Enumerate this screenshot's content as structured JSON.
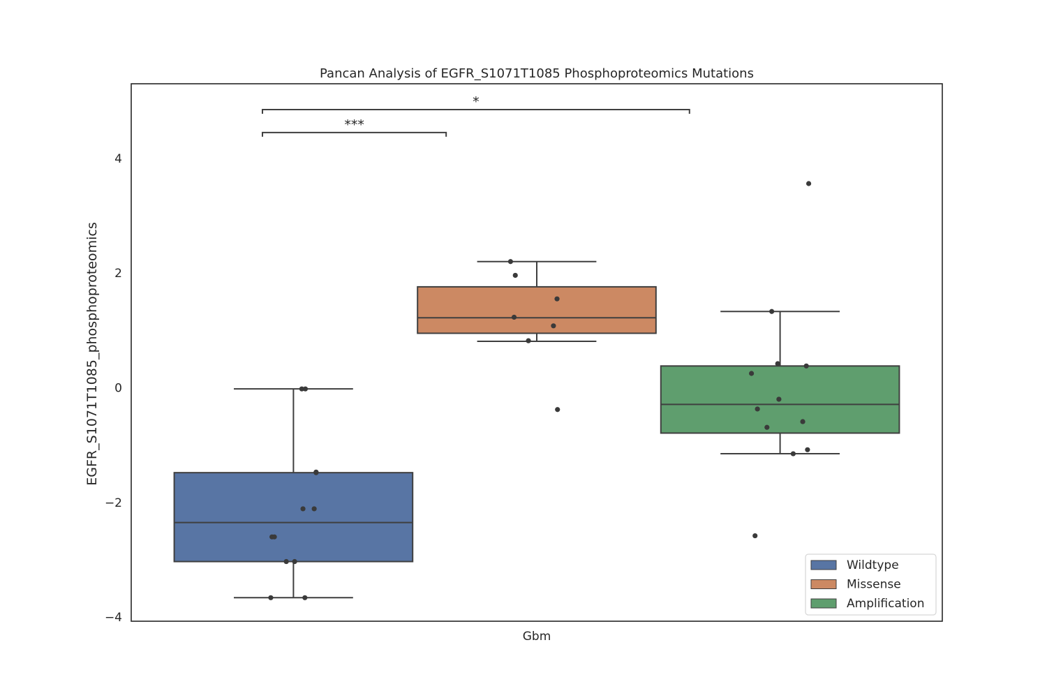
{
  "chart_data": {
    "type": "box",
    "title": "Pancan Analysis of EGFR_S1071T1085 Phosphoproteomics Mutations",
    "xlabel": "",
    "ylabel": "EGFR_S1071T1085_phosphoproteomics",
    "categories": [
      "Gbm"
    ],
    "ylim": [
      -4.07,
      5.3
    ],
    "yticks": [
      4,
      2,
      0,
      -2,
      -4
    ],
    "ytick_labels": [
      "4",
      "2",
      "0",
      "−2",
      "−4"
    ],
    "grid": false,
    "legend_position": "bottom-right",
    "series": [
      {
        "name": "Wildtype",
        "color": "#5875a4",
        "box": {
          "whisker_low": -3.66,
          "q1": -3.03,
          "median": -2.35,
          "q3": -1.48,
          "whisker_high": -0.02
        },
        "points": [
          {
            "offset": -0.095,
            "y": -3.66
          },
          {
            "offset": 0.048,
            "y": -3.66
          },
          {
            "offset": -0.03,
            "y": -3.03
          },
          {
            "offset": 0.005,
            "y": -3.03
          },
          {
            "offset": -0.09,
            "y": -2.6
          },
          {
            "offset": -0.08,
            "y": -2.6
          },
          {
            "offset": 0.04,
            "y": -2.11
          },
          {
            "offset": 0.087,
            "y": -2.11
          },
          {
            "offset": 0.095,
            "y": -1.48
          },
          {
            "offset": 0.095,
            "y": -1.47
          },
          {
            "offset": 0.035,
            "y": -0.02
          },
          {
            "offset": 0.05,
            "y": -0.02
          }
        ]
      },
      {
        "name": "Missense",
        "color": "#cc8963",
        "box": {
          "whisker_low": 0.81,
          "q1": 0.95,
          "median": 1.22,
          "q3": 1.76,
          "whisker_high": 2.2
        },
        "points": [
          {
            "offset": -0.11,
            "y": 2.2
          },
          {
            "offset": -0.09,
            "y": 1.96
          },
          {
            "offset": 0.085,
            "y": 1.55
          },
          {
            "offset": -0.095,
            "y": 1.23
          },
          {
            "offset": 0.07,
            "y": 1.08
          },
          {
            "offset": -0.035,
            "y": 0.82
          },
          {
            "offset": 0.087,
            "y": -0.38
          }
        ]
      },
      {
        "name": "Amplification",
        "color": "#5f9e6e",
        "box": {
          "whisker_low": -1.15,
          "q1": -0.79,
          "median": -0.29,
          "q3": 0.38,
          "whisker_high": 1.33
        },
        "points": [
          {
            "offset": 0.12,
            "y": 3.56
          },
          {
            "offset": -0.035,
            "y": 1.33
          },
          {
            "offset": -0.01,
            "y": 0.42
          },
          {
            "offset": 0.11,
            "y": 0.38
          },
          {
            "offset": -0.12,
            "y": 0.25
          },
          {
            "offset": -0.005,
            "y": -0.2
          },
          {
            "offset": -0.095,
            "y": -0.37
          },
          {
            "offset": 0.095,
            "y": -0.59
          },
          {
            "offset": -0.055,
            "y": -0.69
          },
          {
            "offset": 0.115,
            "y": -1.08
          },
          {
            "offset": 0.055,
            "y": -1.15
          },
          {
            "offset": -0.105,
            "y": -2.58
          }
        ]
      }
    ],
    "annotations": [
      {
        "from": 0,
        "to": 1,
        "label": "***",
        "y": 4.45
      },
      {
        "from": 0,
        "to": 2,
        "label": "*",
        "y": 4.85
      }
    ]
  }
}
